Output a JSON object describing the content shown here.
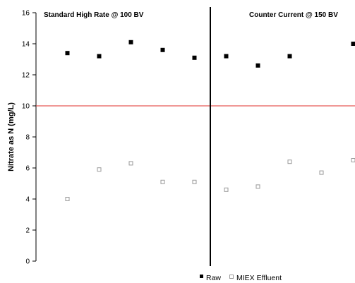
{
  "chart_data": {
    "type": "scatter",
    "title": "",
    "xlabel": "",
    "ylabel": "Nitrate as N (mg/L)",
    "ylim": [
      0,
      16
    ],
    "yticks": [
      "0",
      "2",
      "4",
      "6",
      "8",
      "10",
      "12",
      "14",
      "16"
    ],
    "grid": false,
    "legend_position": "bottom",
    "x": [
      1,
      2,
      3,
      4,
      5,
      6,
      7,
      8,
      9,
      10
    ],
    "series": [
      {
        "name": "Raw",
        "marker": "filled-square",
        "color": "#000000",
        "values": [
          13.4,
          13.2,
          14.1,
          13.6,
          13.1,
          13.2,
          12.6,
          13.2,
          null,
          14.0
        ]
      },
      {
        "name": "MIEX Effluent",
        "marker": "open-square",
        "color": "#9a9a9a",
        "values": [
          4.0,
          5.9,
          6.3,
          5.1,
          5.1,
          4.6,
          4.8,
          6.4,
          5.7,
          6.5
        ]
      }
    ],
    "reference_line": {
      "y": 10,
      "color": "#e0302c"
    },
    "divider_after_x": 5,
    "annotations": [
      {
        "text": "Standard High Rate @ 100 BV"
      },
      {
        "text": "Counter Current @ 150 BV"
      }
    ]
  }
}
